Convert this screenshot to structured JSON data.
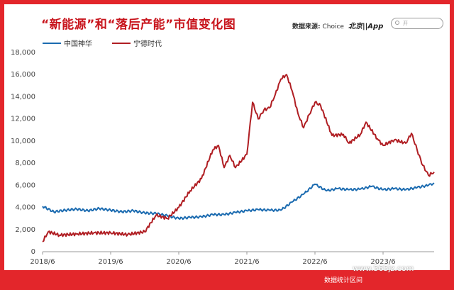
{
  "header": {
    "title": "“新能源”和“落后产能”市值变化图",
    "source_label": "数据来源:",
    "source_value": "Choice",
    "brand": "北京||App",
    "search_placeholder": "开",
    "colors": {
      "accent": "#e3262b",
      "title": "#c8141c"
    }
  },
  "footer": {
    "caption": "数据统计区间",
    "watermark": "www.565jz.com"
  },
  "chart_data": {
    "type": "line",
    "title": "“新能源”和“落后产能”市值变化图",
    "xlabel": "",
    "ylabel": "",
    "x_ticks": [
      "2018/6",
      "2019/6",
      "2020/6",
      "2021/6",
      "2022/6",
      "2023/6"
    ],
    "y_ticks": [
      "0",
      "2,000",
      "4,000",
      "6,000",
      "8,000",
      "10,000",
      "12,000",
      "14,000",
      "16,000",
      "18,000"
    ],
    "ylim": [
      0,
      18000
    ],
    "xlim": [
      "2018/6",
      "2024/3"
    ],
    "grid": false,
    "legend": "top-left",
    "series": [
      {
        "name": "中国神华",
        "color": "#1b6bb0",
        "points": [
          [
            "2018/6",
            4100
          ],
          [
            "2018/8",
            3600
          ],
          [
            "2018/10",
            3750
          ],
          [
            "2018/12",
            3850
          ],
          [
            "2019/2",
            3700
          ],
          [
            "2019/4",
            3900
          ],
          [
            "2019/6",
            3750
          ],
          [
            "2019/8",
            3600
          ],
          [
            "2019/10",
            3700
          ],
          [
            "2019/12",
            3500
          ],
          [
            "2020/2",
            3450
          ],
          [
            "2020/4",
            3250
          ],
          [
            "2020/6",
            3000
          ],
          [
            "2020/8",
            3100
          ],
          [
            "2020/10",
            3150
          ],
          [
            "2020/12",
            3350
          ],
          [
            "2021/2",
            3350
          ],
          [
            "2021/4",
            3550
          ],
          [
            "2021/6",
            3700
          ],
          [
            "2021/8",
            3800
          ],
          [
            "2021/10",
            3750
          ],
          [
            "2021/12",
            3750
          ],
          [
            "2022/2",
            4500
          ],
          [
            "2022/4",
            5200
          ],
          [
            "2022/6",
            6100
          ],
          [
            "2022/8",
            5500
          ],
          [
            "2022/10",
            5700
          ],
          [
            "2022/12",
            5600
          ],
          [
            "2023/2",
            5650
          ],
          [
            "2023/4",
            5900
          ],
          [
            "2023/6",
            5600
          ],
          [
            "2023/8",
            5700
          ],
          [
            "2023/10",
            5600
          ],
          [
            "2023/12",
            5800
          ],
          [
            "2024/2",
            6000
          ],
          [
            "2024/3",
            6200
          ]
        ]
      },
      {
        "name": "宁德时代",
        "color": "#b01e23",
        "points": [
          [
            "2018/6",
            900
          ],
          [
            "2018/7",
            1800
          ],
          [
            "2018/9",
            1500
          ],
          [
            "2018/12",
            1600
          ],
          [
            "2019/3",
            1700
          ],
          [
            "2019/6",
            1700
          ],
          [
            "2019/9",
            1550
          ],
          [
            "2019/12",
            1800
          ],
          [
            "2020/2",
            3300
          ],
          [
            "2020/4",
            3000
          ],
          [
            "2020/6",
            4000
          ],
          [
            "2020/8",
            5500
          ],
          [
            "2020/10",
            6600
          ],
          [
            "2020/12",
            9200
          ],
          [
            "2021/1",
            9600
          ],
          [
            "2021/2",
            7600
          ],
          [
            "2021/3",
            8700
          ],
          [
            "2021/4",
            7600
          ],
          [
            "2021/6",
            8800
          ],
          [
            "2021/7",
            13500
          ],
          [
            "2021/8",
            12000
          ],
          [
            "2021/9",
            12800
          ],
          [
            "2021/10",
            13000
          ],
          [
            "2021/11",
            14200
          ],
          [
            "2021/12",
            15600
          ],
          [
            "2022/1",
            16000
          ],
          [
            "2022/2",
            14500
          ],
          [
            "2022/3",
            12500
          ],
          [
            "2022/4",
            11200
          ],
          [
            "2022/5",
            12400
          ],
          [
            "2022/6",
            13500
          ],
          [
            "2022/7",
            13200
          ],
          [
            "2022/9",
            10500
          ],
          [
            "2022/11",
            10600
          ],
          [
            "2022/12",
            9800
          ],
          [
            "2023/2",
            10600
          ],
          [
            "2023/3",
            11700
          ],
          [
            "2023/5",
            10200
          ],
          [
            "2023/6",
            9600
          ],
          [
            "2023/8",
            10100
          ],
          [
            "2023/10",
            9800
          ],
          [
            "2023/11",
            10700
          ],
          [
            "2023/12",
            9200
          ],
          [
            "2024/1",
            7800
          ],
          [
            "2024/2",
            6900
          ],
          [
            "2024/3",
            7200
          ]
        ]
      }
    ]
  }
}
